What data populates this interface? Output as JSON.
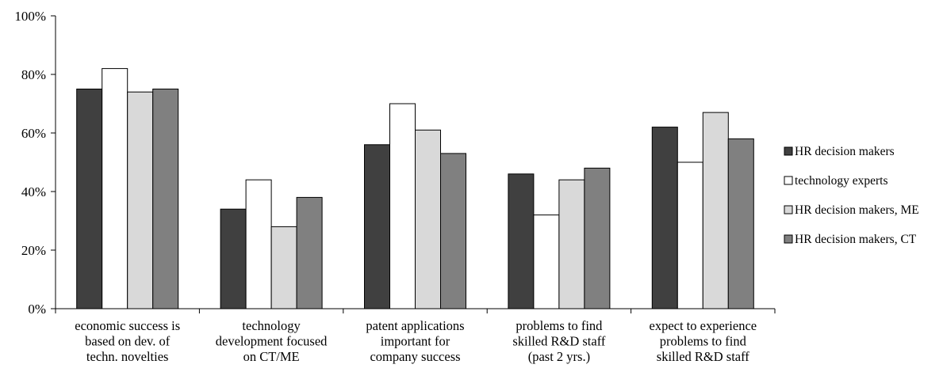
{
  "chart_data": {
    "type": "bar",
    "categories": [
      [
        "economic success is",
        "based on dev. of",
        "techn. novelties"
      ],
      [
        "technology",
        "development focused",
        "on CT/ME"
      ],
      [
        "patent applications",
        "important for",
        "company success"
      ],
      [
        "problems to find",
        "skilled R&D staff",
        "(past 2 yrs.)"
      ],
      [
        "expect to experience",
        "problems to find",
        "skilled R&D staff"
      ]
    ],
    "series": [
      {
        "name": "HR decision makers",
        "color": "#404040",
        "values": [
          75,
          34,
          56,
          46,
          62
        ]
      },
      {
        "name": "technology experts",
        "color": "#ffffff",
        "values": [
          82,
          44,
          70,
          32,
          50
        ]
      },
      {
        "name": "HR decision makers, ME",
        "color": "#d9d9d9",
        "values": [
          74,
          28,
          61,
          44,
          67
        ]
      },
      {
        "name": "HR decision makers, CT",
        "color": "#808080",
        "values": [
          75,
          38,
          53,
          48,
          58
        ]
      }
    ],
    "ylim": [
      0,
      100
    ],
    "yticks": [
      0,
      20,
      40,
      60,
      80,
      100
    ],
    "ytick_labels": [
      "0%",
      "20%",
      "40%",
      "60%",
      "80%",
      "100%"
    ],
    "title": "",
    "xlabel": "",
    "ylabel": "",
    "grid": false,
    "legend_position": "right"
  }
}
